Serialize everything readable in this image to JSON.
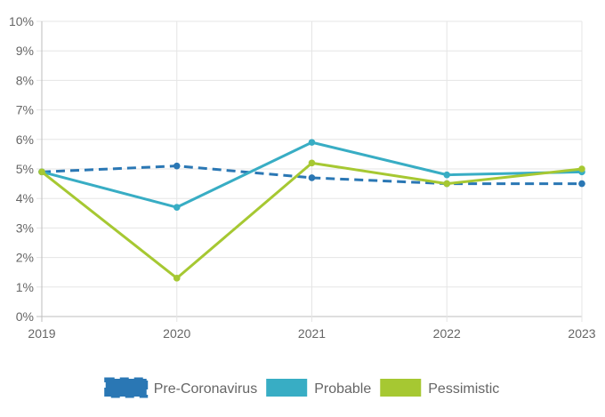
{
  "chart_data": {
    "type": "line",
    "title": "",
    "xlabel": "",
    "ylabel": "",
    "x": [
      "2019",
      "2020",
      "2021",
      "2022",
      "2023"
    ],
    "ylim": [
      0,
      10
    ],
    "y_tick_labels": [
      "0%",
      "1%",
      "2%",
      "3%",
      "4%",
      "5%",
      "6%",
      "7%",
      "8%",
      "9%",
      "10%"
    ],
    "grid": true,
    "legend_position": "bottom",
    "series": [
      {
        "name": "Pre-Coronavirus",
        "values": [
          4.9,
          5.1,
          4.7,
          4.5,
          4.5
        ],
        "color": "#2a77b4",
        "dashed": true
      },
      {
        "name": "Probable",
        "values": [
          4.9,
          3.7,
          5.9,
          4.8,
          4.9
        ],
        "color": "#38adc4",
        "dashed": false
      },
      {
        "name": "Pessimistic",
        "values": [
          4.9,
          1.3,
          5.2,
          4.5,
          5.0
        ],
        "color": "#a6c832",
        "dashed": false
      }
    ]
  }
}
